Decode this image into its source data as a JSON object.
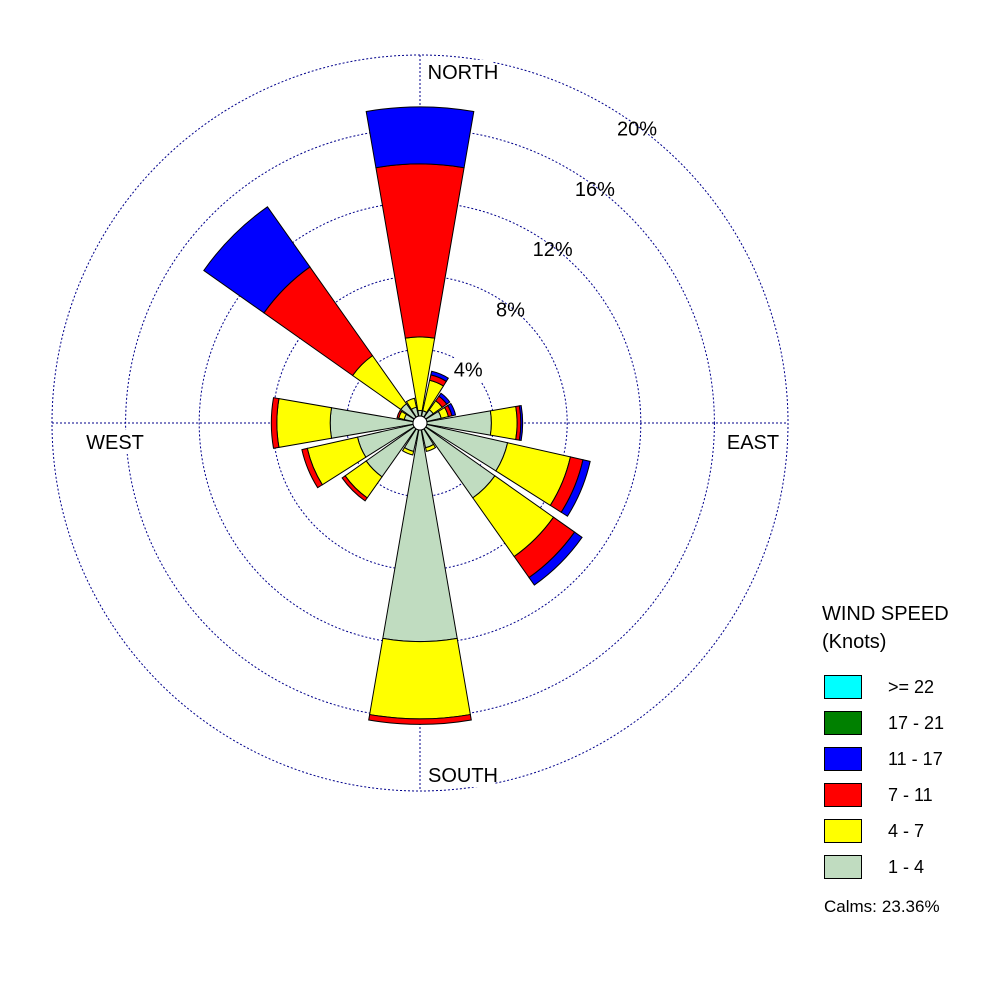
{
  "chart_data": {
    "type": "wind-rose",
    "directions": [
      "N",
      "NNE",
      "NE",
      "ENE",
      "E",
      "ESE",
      "SE",
      "SSE",
      "S",
      "SSW",
      "SW",
      "WSW",
      "W",
      "WNW",
      "NW",
      "NNW"
    ],
    "compass_labels": {
      "north": "NORTH",
      "east": "EAST",
      "south": "SOUTH",
      "west": "WEST"
    },
    "rings": [
      {
        "value": 4,
        "label": "4%"
      },
      {
        "value": 8,
        "label": "8%"
      },
      {
        "value": 12,
        "label": "12%"
      },
      {
        "value": 16,
        "label": "16%"
      },
      {
        "value": 20,
        "label": "20%"
      }
    ],
    "rmax": 20,
    "legend": {
      "title_line1": "WIND SPEED",
      "title_line2": "(Knots)",
      "calms_label": "Calms:",
      "calms_value": "23.36%"
    },
    "series": [
      {
        "name": "1 - 4",
        "color": "#c0dcc0",
        "values": [
          0.3,
          0.3,
          0.5,
          0.8,
          3.5,
          4.5,
          4.6,
          1.0,
          11.5,
          1.2,
          3.2,
          3.1,
          4.5,
          0.5,
          0.9,
          0.5
        ]
      },
      {
        "name": "4 - 7",
        "color": "#ffff00",
        "values": [
          4.0,
          1.7,
          0.6,
          0.4,
          1.4,
          3.5,
          3.9,
          0.2,
          4.2,
          0.2,
          1.4,
          2.8,
          2.9,
          0.3,
          3.2,
          0.5
        ]
      },
      {
        "name": "7 - 11",
        "color": "#ff0000",
        "values": [
          9.4,
          0.3,
          0.3,
          0.2,
          0.2,
          0.7,
          1.4,
          0.0,
          0.3,
          0.0,
          0.2,
          0.3,
          0.3,
          0.1,
          5.9,
          0.0
        ]
      },
      {
        "name": "11 - 17",
        "color": "#0000ff",
        "values": [
          3.1,
          0.2,
          0.2,
          0.2,
          0.1,
          0.4,
          0.5,
          0.0,
          0.0,
          0.0,
          0.0,
          0.0,
          0.0,
          0.0,
          4.0,
          0.0
        ]
      },
      {
        "name": "17 - 21",
        "color": "#008000",
        "values": [
          0,
          0,
          0,
          0,
          0,
          0,
          0,
          0,
          0,
          0,
          0,
          0,
          0,
          0,
          0,
          0
        ]
      },
      {
        "name": ">= 22",
        "color": "#00ffff",
        "values": [
          0,
          0,
          0,
          0,
          0,
          0,
          0,
          0,
          0,
          0,
          0,
          0,
          0,
          0,
          0,
          0
        ]
      }
    ]
  }
}
